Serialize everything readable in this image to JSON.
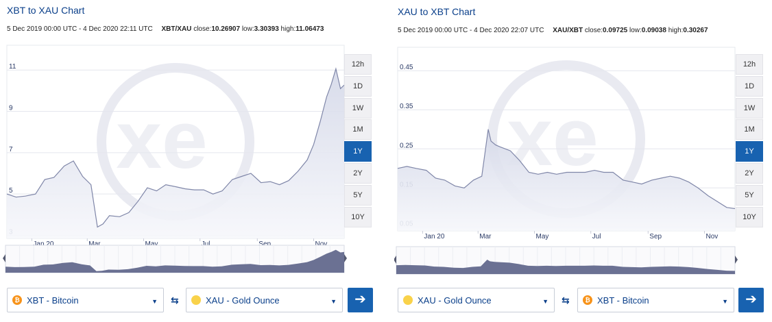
{
  "panels": [
    {
      "title": "XBT to XAU Chart",
      "date_range": "5 Dec 2019 00:00 UTC - 4 Dec 2020 22:11 UTC",
      "pair": "XBT/XAU",
      "close_label": "close:",
      "close": "10.26907",
      "low_label": "low:",
      "low": "3.30393",
      "high_label": "high:",
      "high": "11.06473",
      "from_currency": "XBT - Bitcoin",
      "to_currency": "XAU - Gold Ounce"
    },
    {
      "title": "XAU to XBT Chart",
      "date_range": "5 Dec 2019 00:00 UTC - 4 Dec 2020 22:07 UTC",
      "pair": "XAU/XBT",
      "close_label": "close:",
      "close": "0.09725",
      "low_label": "low:",
      "low": "0.09038",
      "high_label": "high:",
      "high": "0.30267",
      "from_currency": "XAU - Gold Ounce",
      "to_currency": "XBT - Bitcoin"
    }
  ],
  "range_buttons": [
    "12h",
    "1D",
    "1W",
    "1M",
    "1Y",
    "2Y",
    "5Y",
    "10Y"
  ],
  "active_range": "1Y",
  "icons": {
    "swap": "swap-arrows-icon",
    "go": "arrow-right-icon",
    "caret": "caret-down-icon",
    "btc": "bitcoin-coin-icon",
    "gold": "gold-coin-icon"
  },
  "colors": {
    "accent": "#1862b0",
    "line": "#7f86a8",
    "fill": "#e3e5ef",
    "navigator_fill": "#6b7193",
    "title": "#0a3f8a"
  },
  "chart_data": [
    {
      "type": "area",
      "title": "XBT to XAU Chart",
      "x_ticks": [
        "Jan 20",
        "Mar",
        "May",
        "Jul",
        "Sep",
        "Nov"
      ],
      "x_tick_dates": [
        "2020-01-01",
        "2020-03-01",
        "2020-05-01",
        "2020-07-01",
        "2020-09-01",
        "2020-11-01"
      ],
      "x_range": [
        "2019-12-05",
        "2020-12-04"
      ],
      "y_ticks": [
        "3",
        "5",
        "7",
        "9",
        "11"
      ],
      "ylim": [
        2.85,
        12.2
      ],
      "grid": true,
      "series": [
        {
          "x": [
            "2019-12-05",
            "2019-12-15",
            "2019-12-25",
            "2020-01-05",
            "2020-01-15",
            "2020-01-25",
            "2020-02-05",
            "2020-02-15",
            "2020-02-25",
            "2020-03-05",
            "2020-03-12",
            "2020-03-18",
            "2020-03-25",
            "2020-04-05",
            "2020-04-15",
            "2020-04-25",
            "2020-05-05",
            "2020-05-15",
            "2020-05-25",
            "2020-06-05",
            "2020-06-15",
            "2020-06-25",
            "2020-07-05",
            "2020-07-15",
            "2020-07-25",
            "2020-08-05",
            "2020-08-15",
            "2020-08-25",
            "2020-09-05",
            "2020-09-15",
            "2020-09-25",
            "2020-10-05",
            "2020-10-15",
            "2020-10-25",
            "2020-11-01",
            "2020-11-08",
            "2020-11-15",
            "2020-11-20",
            "2020-11-25",
            "2020-11-30",
            "2020-12-04"
          ],
          "y": [
            5.0,
            4.85,
            4.9,
            5.0,
            5.7,
            5.8,
            6.35,
            6.6,
            5.85,
            5.45,
            3.4,
            3.55,
            3.95,
            3.9,
            4.1,
            4.65,
            5.3,
            5.15,
            5.45,
            5.35,
            5.25,
            5.2,
            5.2,
            5.0,
            5.15,
            5.7,
            5.85,
            6.0,
            5.55,
            5.6,
            5.45,
            5.65,
            6.1,
            6.65,
            7.4,
            8.5,
            9.7,
            10.3,
            11.06,
            10.1,
            10.27
          ]
        }
      ]
    },
    {
      "type": "area",
      "title": "XAU to XBT Chart",
      "x_ticks": [
        "Jan 20",
        "Mar",
        "May",
        "Jul",
        "Sep",
        "Nov"
      ],
      "x_tick_dates": [
        "2020-01-01",
        "2020-03-01",
        "2020-05-01",
        "2020-07-01",
        "2020-09-01",
        "2020-11-01"
      ],
      "x_range": [
        "2019-12-05",
        "2020-12-04"
      ],
      "y_ticks": [
        "0.05",
        "0.15",
        "0.25",
        "0.35",
        "0.45"
      ],
      "ylim": [
        0.04,
        0.51
      ],
      "grid": true,
      "series": [
        {
          "x": [
            "2019-12-05",
            "2019-12-15",
            "2019-12-25",
            "2020-01-05",
            "2020-01-15",
            "2020-01-25",
            "2020-02-05",
            "2020-02-15",
            "2020-02-25",
            "2020-03-05",
            "2020-03-12",
            "2020-03-15",
            "2020-03-20",
            "2020-03-25",
            "2020-04-05",
            "2020-04-15",
            "2020-04-25",
            "2020-05-05",
            "2020-05-15",
            "2020-05-25",
            "2020-06-05",
            "2020-06-15",
            "2020-06-25",
            "2020-07-05",
            "2020-07-15",
            "2020-07-25",
            "2020-08-05",
            "2020-08-15",
            "2020-08-25",
            "2020-09-05",
            "2020-09-15",
            "2020-09-25",
            "2020-10-05",
            "2020-10-15",
            "2020-10-25",
            "2020-11-05",
            "2020-11-15",
            "2020-11-25",
            "2020-12-04"
          ],
          "y": [
            0.2,
            0.205,
            0.2,
            0.195,
            0.175,
            0.17,
            0.155,
            0.15,
            0.17,
            0.18,
            0.3,
            0.27,
            0.26,
            0.255,
            0.245,
            0.22,
            0.19,
            0.185,
            0.19,
            0.185,
            0.19,
            0.19,
            0.19,
            0.195,
            0.19,
            0.19,
            0.17,
            0.165,
            0.16,
            0.17,
            0.175,
            0.18,
            0.175,
            0.165,
            0.15,
            0.13,
            0.115,
            0.1,
            0.097
          ]
        }
      ]
    }
  ]
}
